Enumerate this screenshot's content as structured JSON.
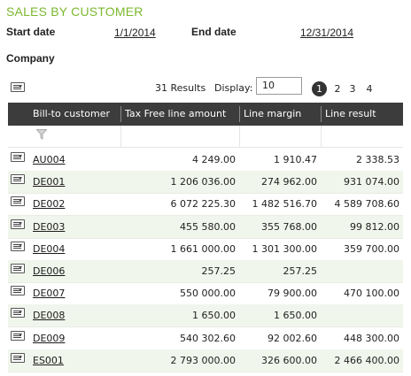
{
  "report": {
    "title": "SALES BY CUSTOMER",
    "start_label": "Start date",
    "start_value": "1/1/2014",
    "end_label": "End date",
    "end_value": "12/31/2014",
    "company_label": "Company"
  },
  "toolbar": {
    "results": "31 Results",
    "display_label": "Display:",
    "display_value": "10",
    "pages": [
      "1",
      "2",
      "3",
      "4"
    ],
    "active_page": "1"
  },
  "grid": {
    "columns": [
      "Bill-to customer",
      "Tax Free line amount",
      "Line margin",
      "Line result"
    ],
    "rows": [
      {
        "customer": "AU004",
        "amount": "4 249.00",
        "margin": "1 910.47",
        "result": "2 338.53"
      },
      {
        "customer": "DE001",
        "amount": "1 206 036.00",
        "margin": "274 962.00",
        "result": "931 074.00"
      },
      {
        "customer": "DE002",
        "amount": "6 072 225.30",
        "margin": "1 482 516.70",
        "result": "4 589 708.60"
      },
      {
        "customer": "DE003",
        "amount": "455 580.00",
        "margin": "355 768.00",
        "result": "99 812.00"
      },
      {
        "customer": "DE004",
        "amount": "1 661 000.00",
        "margin": "1 301 300.00",
        "result": "359 700.00"
      },
      {
        "customer": "DE006",
        "amount": "257.25",
        "margin": "257.25",
        "result": ""
      },
      {
        "customer": "DE007",
        "amount": "550 000.00",
        "margin": "79 900.00",
        "result": "470 100.00"
      },
      {
        "customer": "DE008",
        "amount": "1 650.00",
        "margin": "1 650.00",
        "result": ""
      },
      {
        "customer": "DE009",
        "amount": "540 302.60",
        "margin": "92 002.60",
        "result": "448 300.00"
      },
      {
        "customer": "ES001",
        "amount": "2 793 000.00",
        "margin": "326 600.00",
        "result": "2 466 400.00"
      }
    ]
  },
  "colors": {
    "title": "#7cb82f",
    "header_bg": "#3c3c3c",
    "alt_row_bg": "#f1f6ec",
    "active_page_bg": "#333333"
  },
  "icons": {
    "grid_menu": "grid-menu-icon",
    "row_menu": "row-menu-icon",
    "filter": "filter-icon"
  }
}
